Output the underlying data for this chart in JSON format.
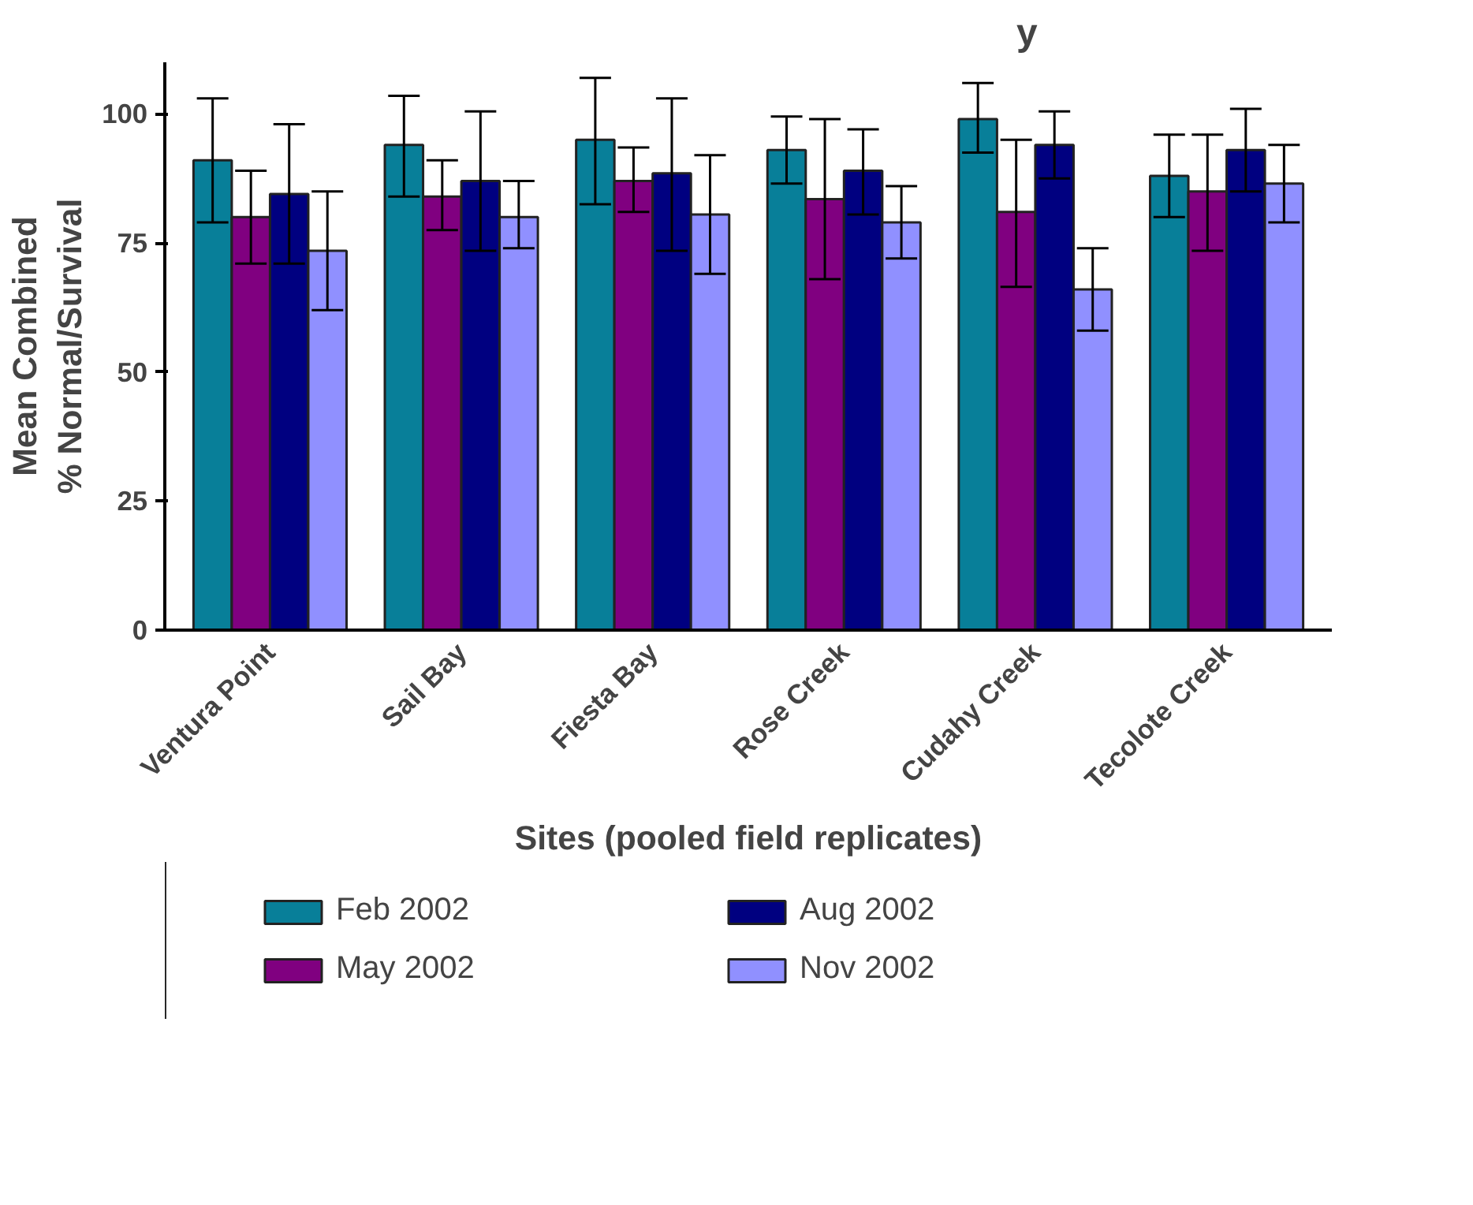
{
  "chart_data": {
    "type": "bar",
    "title": "y",
    "xlabel": "Sites (pooled field replicates)",
    "ylabel": "Mean Combined\n% Normal/Survival",
    "categories": [
      "Ventura Point",
      "Sail Bay",
      "Fiesta Bay",
      "Rose Creek",
      "Cudahy Creek",
      "Tecolote Creek"
    ],
    "series": [
      {
        "name": "Feb 2002",
        "color": "#087f99",
        "values": [
          91,
          94,
          95,
          93,
          99,
          88
        ],
        "errors": [
          [
            79,
            103
          ],
          [
            84,
            103.5
          ],
          [
            82.5,
            107
          ],
          [
            86.5,
            99.5
          ],
          [
            92.5,
            106
          ],
          [
            80,
            96
          ]
        ]
      },
      {
        "name": "May 2002",
        "color": "#800080",
        "values": [
          80,
          84,
          87,
          83.5,
          81,
          85
        ],
        "errors": [
          [
            71,
            89
          ],
          [
            77.5,
            91
          ],
          [
            81,
            93.5
          ],
          [
            68,
            99
          ],
          [
            66.5,
            95
          ],
          [
            73.5,
            96
          ]
        ]
      },
      {
        "name": "Aug 2002",
        "color": "#000080",
        "values": [
          84.5,
          87,
          88.5,
          89,
          94,
          93
        ],
        "errors": [
          [
            71,
            98
          ],
          [
            73.5,
            100.5
          ],
          [
            73.5,
            103
          ],
          [
            80.5,
            97
          ],
          [
            87.5,
            100.5
          ],
          [
            85,
            101
          ]
        ]
      },
      {
        "name": "Nov 2002",
        "color": "#9090ff",
        "values": [
          73.5,
          80,
          80.5,
          79,
          66,
          86.5
        ],
        "errors": [
          [
            62,
            85
          ],
          [
            74,
            87
          ],
          [
            69,
            92
          ],
          [
            72,
            86
          ],
          [
            58,
            74
          ],
          [
            79,
            94
          ]
        ]
      }
    ],
    "ylim": [
      0,
      110
    ],
    "yticks": [
      0,
      25,
      50,
      75,
      100
    ],
    "grid": false,
    "legend": "bottom"
  }
}
